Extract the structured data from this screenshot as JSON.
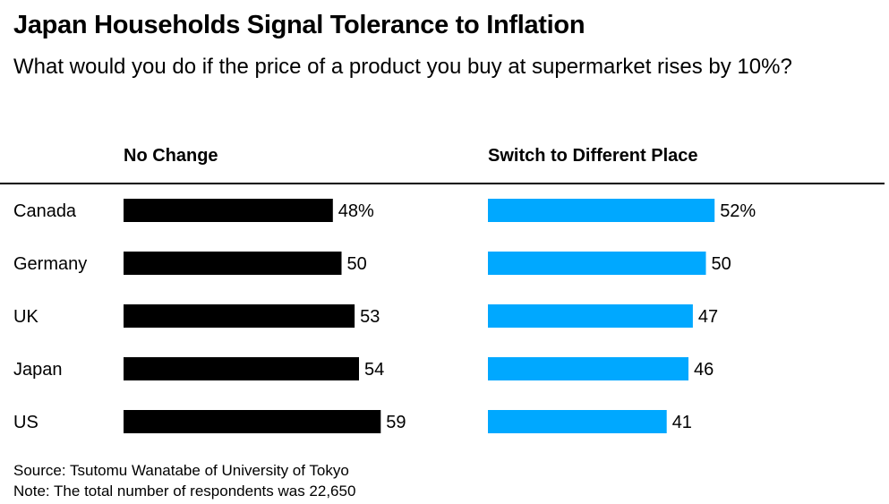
{
  "title": "Japan Households Signal Tolerance to Inflation",
  "subtitle": "What would you do if the price of a product you buy at supermarket rises by 10%?",
  "footer": {
    "source": "Source: Tsutomu Wanatabe of University of Tokyo",
    "note": "Note: The total number of respondents was 22,650"
  },
  "colors": {
    "no_change": "#000000",
    "switch": "#00a8ff"
  },
  "chart_data": {
    "type": "bar",
    "orientation": "horizontal",
    "layout": "two panels side by side",
    "categories": [
      "Canada",
      "Germany",
      "UK",
      "Japan",
      "US"
    ],
    "series": [
      {
        "name": "No Change",
        "values": [
          48,
          50,
          53,
          54,
          59
        ],
        "labels": [
          "48%",
          "50",
          "53",
          "54",
          "59"
        ]
      },
      {
        "name": "Switch to Different Place",
        "values": [
          52,
          50,
          47,
          46,
          41
        ],
        "labels": [
          "52%",
          "50",
          "47",
          "46",
          "41"
        ]
      }
    ],
    "unit": "%",
    "grid": false,
    "xlim": [
      0,
      100
    ]
  }
}
